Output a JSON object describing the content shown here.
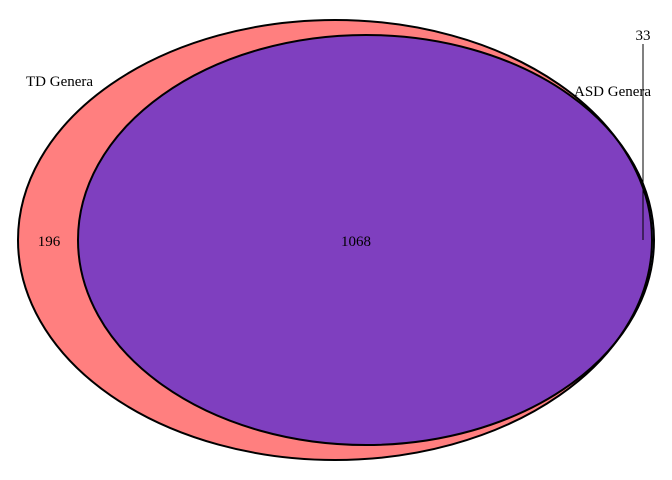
{
  "chart_data": {
    "type": "venn",
    "sets": [
      {
        "name": "TD Genera",
        "color": "#ff7f7f"
      },
      {
        "name": "ASD Genera",
        "color": "#7f7fff"
      }
    ],
    "regions": {
      "td_only": "196",
      "intersection": "1068",
      "asd_only": "33"
    },
    "colors": {
      "td": "#ff7f7f",
      "asd": "#7f7fff",
      "overlap": "#7f3fbf",
      "outline": "#000000"
    }
  }
}
